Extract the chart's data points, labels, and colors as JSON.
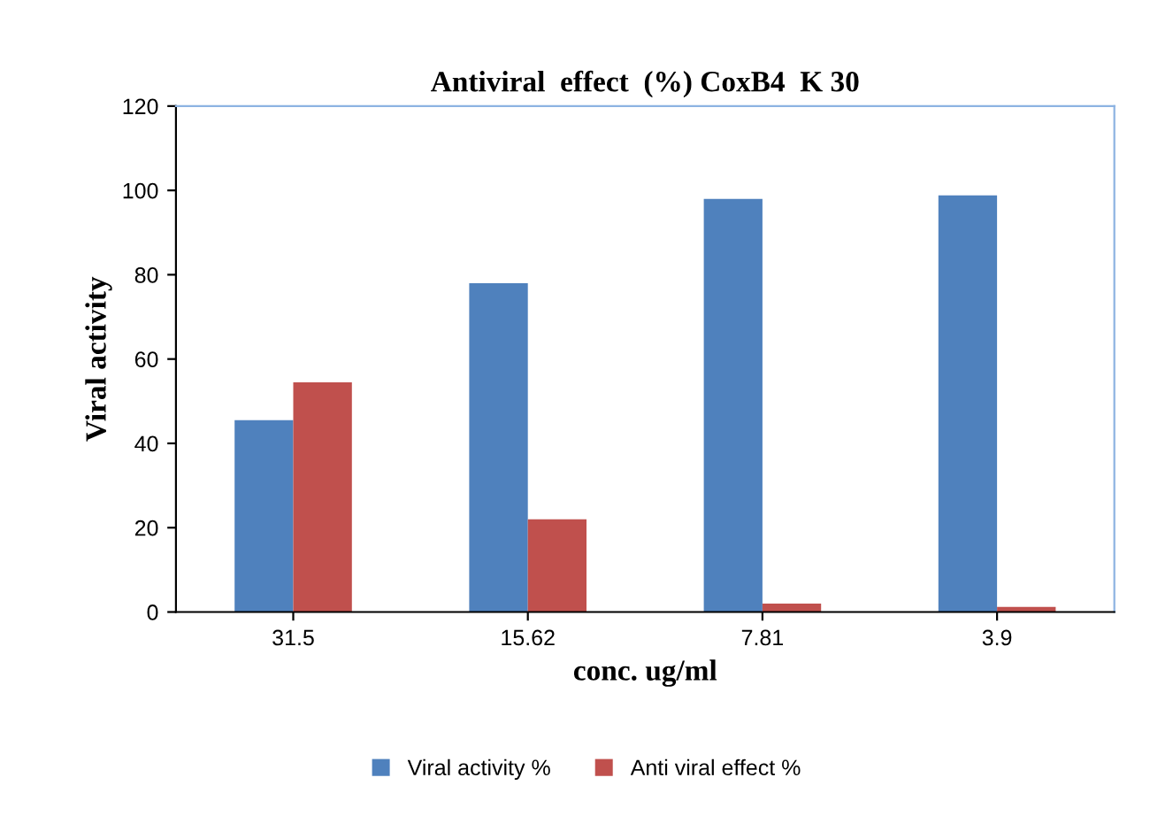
{
  "chart_data": {
    "type": "bar",
    "title": "Antiviral  effect  (%) CoxB4  K 30",
    "xlabel": "conc. ug/ml",
    "ylabel": "Viral activity",
    "categories": [
      "31.5",
      "15.62",
      "7.81",
      "3.9"
    ],
    "series": [
      {
        "name": "Viral activity %",
        "color": "#4f81bd",
        "values": [
          45.5,
          78,
          98,
          98.8
        ]
      },
      {
        "name": "Anti viral effect %",
        "color": "#c0504d",
        "values": [
          54.5,
          22,
          2,
          1.2
        ]
      }
    ],
    "ylim": [
      0,
      120
    ],
    "yticks": [
      0,
      20,
      40,
      60,
      80,
      100,
      120
    ],
    "grid": false,
    "legend": "bottom"
  }
}
